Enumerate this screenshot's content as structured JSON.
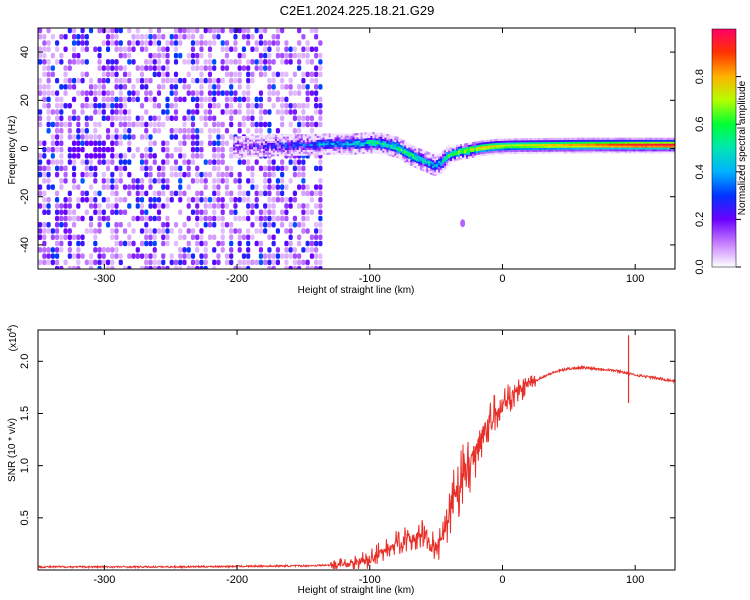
{
  "title": "C2E1.2024.225.18.21.G29",
  "chart_data": [
    {
      "type": "heatmap",
      "xlabel": "Height of straight line (km)",
      "ylabel": "Frequency (Hz)",
      "xlim": [
        -350,
        130
      ],
      "ylim": [
        -50,
        50
      ],
      "xticks": [
        -300,
        -200,
        -100,
        0,
        100
      ],
      "yticks": [
        -40,
        -20,
        0,
        20,
        40
      ],
      "xtick_labels": [
        "-300",
        "-200",
        "-100",
        "0",
        "100"
      ],
      "ytick_labels": [
        "-40",
        "-20",
        "0",
        "20",
        "40"
      ],
      "colorbar": {
        "label": "Normalized spectral amplitude",
        "range": [
          0,
          1
        ],
        "ticks": [
          0.0,
          0.2,
          0.4,
          0.6,
          0.8
        ],
        "tick_labels": [
          "0.0",
          "0.2",
          "0.4",
          "0.6",
          "0.8"
        ]
      },
      "noise_region_x": [
        -350,
        -137
      ],
      "ridge": {
        "x": [
          -203,
          -190,
          -175,
          -160,
          -145,
          -130,
          -115,
          -100,
          -90,
          -80,
          -72,
          -65,
          -58,
          -52,
          -47,
          -42,
          -35,
          -25,
          -15,
          -5,
          5,
          20,
          40,
          60,
          80,
          100,
          130
        ],
        "freq": [
          0.5,
          1.0,
          1.2,
          1.5,
          1.5,
          2.0,
          1.8,
          2.5,
          2.0,
          0.5,
          -2.0,
          -4.0,
          -5.5,
          -7.0,
          -6.0,
          -3.0,
          -1.5,
          -0.5,
          0.5,
          1.0,
          1.2,
          1.3,
          1.4,
          1.5,
          1.5,
          1.5,
          1.5
        ],
        "amplitude": [
          0.15,
          0.18,
          0.22,
          0.28,
          0.32,
          0.38,
          0.42,
          0.5,
          0.5,
          0.55,
          0.55,
          0.5,
          0.45,
          0.4,
          0.45,
          0.55,
          0.65,
          0.75,
          0.8,
          0.75,
          0.7,
          0.75,
          0.8,
          0.85,
          0.9,
          0.95,
          0.98
        ]
      },
      "outlier_point": {
        "x": -30,
        "freq": -31,
        "amplitude": 0.12
      }
    },
    {
      "type": "line",
      "xlabel": "Height of straight line (km)",
      "ylabel": "SNR (10 * v/v)",
      "y_multiplier_label": "(x10",
      "y_multiplier_exponent": "4",
      "y_multiplier_close": ")",
      "xlim": [
        -350,
        130
      ],
      "ylim": [
        0,
        2.3
      ],
      "xticks": [
        -300,
        -200,
        -100,
        0,
        100
      ],
      "yticks": [
        0.5,
        1.0,
        1.5,
        2.0
      ],
      "xtick_labels": [
        "-300",
        "-200",
        "-100",
        "0",
        "100"
      ],
      "ytick_labels": [
        "0.5",
        "1.0",
        "1.5",
        "2.0"
      ],
      "series": [
        {
          "color": "#e8302a",
          "x": [
            -350,
            -300,
            -250,
            -200,
            -150,
            -120,
            -100,
            -90,
            -80,
            -70,
            -60,
            -50,
            -45,
            -40,
            -35,
            -30,
            -25,
            -20,
            -15,
            -10,
            -5,
            0,
            10,
            20,
            30,
            40,
            50,
            60,
            70,
            80,
            90,
            95,
            100,
            110,
            120,
            130
          ],
          "values": [
            0.03,
            0.03,
            0.03,
            0.035,
            0.04,
            0.05,
            0.1,
            0.18,
            0.25,
            0.3,
            0.33,
            0.2,
            0.3,
            0.5,
            0.7,
            0.9,
            1.0,
            1.15,
            1.3,
            1.4,
            1.5,
            1.6,
            1.7,
            1.78,
            1.85,
            1.9,
            1.93,
            1.94,
            1.93,
            1.92,
            1.9,
            1.88,
            1.87,
            1.85,
            1.83,
            1.81
          ]
        }
      ],
      "spikes": [
        {
          "x": 95,
          "values": [
            2.25,
            1.6
          ]
        }
      ]
    }
  ]
}
